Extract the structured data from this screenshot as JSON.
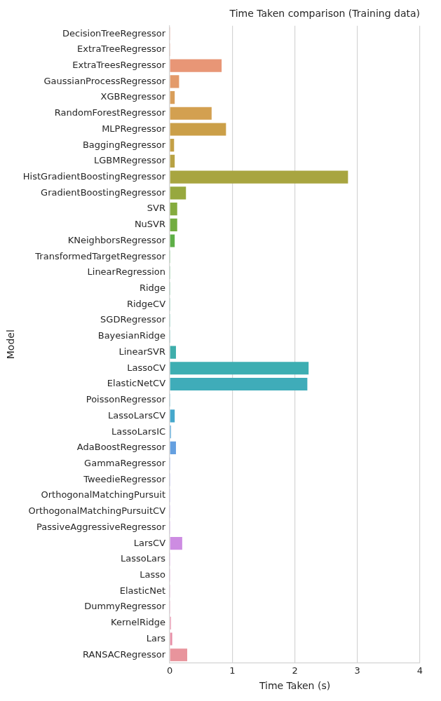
{
  "chart_data": {
    "type": "bar",
    "orientation": "horizontal",
    "title": "Time Taken comparison (Training data)",
    "x_label": "Time Taken (s)",
    "y_label": "Model",
    "categories": [
      "DecisionTreeRegressor",
      "ExtraTreeRegressor",
      "ExtraTreesRegressor",
      "GaussianProcessRegressor",
      "XGBRegressor",
      "RandomForestRegressor",
      "MLPRegressor",
      "BaggingRegressor",
      "LGBMRegressor",
      "HistGradientBoostingRegressor",
      "GradientBoostingRegressor",
      "SVR",
      "NuSVR",
      "KNeighborsRegressor",
      "TransformedTargetRegressor",
      "LinearRegression",
      "Ridge",
      "RidgeCV",
      "SGDRegressor",
      "BayesianRidge",
      "LinearSVR",
      "LassoCV",
      "ElasticNetCV",
      "PoissonRegressor",
      "LassoLarsCV",
      "LassoLarsIC",
      "AdaBoostRegressor",
      "GammaRegressor",
      "TweedieRegressor",
      "OrthogonalMatchingPursuit",
      "OrthogonalMatchingPursuitCV",
      "PassiveAggressiveRegressor",
      "LarsCV",
      "LassoLars",
      "Lasso",
      "ElasticNet",
      "DummyRegressor",
      "KernelRidge",
      "Lars",
      "RANSACRegressor"
    ],
    "values": [
      0.01,
      0.01,
      0.83,
      0.15,
      0.08,
      0.67,
      0.9,
      0.07,
      0.08,
      2.85,
      0.26,
      0.12,
      0.12,
      0.08,
      0.01,
      0.01,
      0.01,
      0.01,
      0.01,
      0.01,
      0.1,
      2.22,
      2.2,
      0.01,
      0.08,
      0.02,
      0.1,
      0.01,
      0.01,
      0.01,
      0.01,
      0.01,
      0.2,
      0.01,
      0.01,
      0.01,
      0.01,
      0.02,
      0.04,
      0.28
    ],
    "colors": [
      "#e8907f",
      "#e8927a",
      "#e89676",
      "#e39a6a",
      "#d99e5a",
      "#d3a050",
      "#cb9f48",
      "#c4a046",
      "#b8a244",
      "#a8a540",
      "#97a83e",
      "#85ab3e",
      "#72ad40",
      "#5eaf47",
      "#4cb059",
      "#45b06c",
      "#43b07c",
      "#42b08a",
      "#41b097",
      "#40afa2",
      "#3eaeab",
      "#3daeb2",
      "#3facb9",
      "#42aac2",
      "#46a8cc",
      "#52a4d6",
      "#65a0e0",
      "#7e9ae6",
      "#9596ea",
      "#a692eb",
      "#b58fea",
      "#c28ee6",
      "#cd8ce2",
      "#d78cda",
      "#de8dcf",
      "#e38dc4",
      "#e68eb8",
      "#e890ad",
      "#e78fa6",
      "#e8949c"
    ],
    "xlim": [
      0,
      4
    ],
    "xticks": [
      0,
      1,
      2,
      3,
      4
    ],
    "grid": true
  }
}
